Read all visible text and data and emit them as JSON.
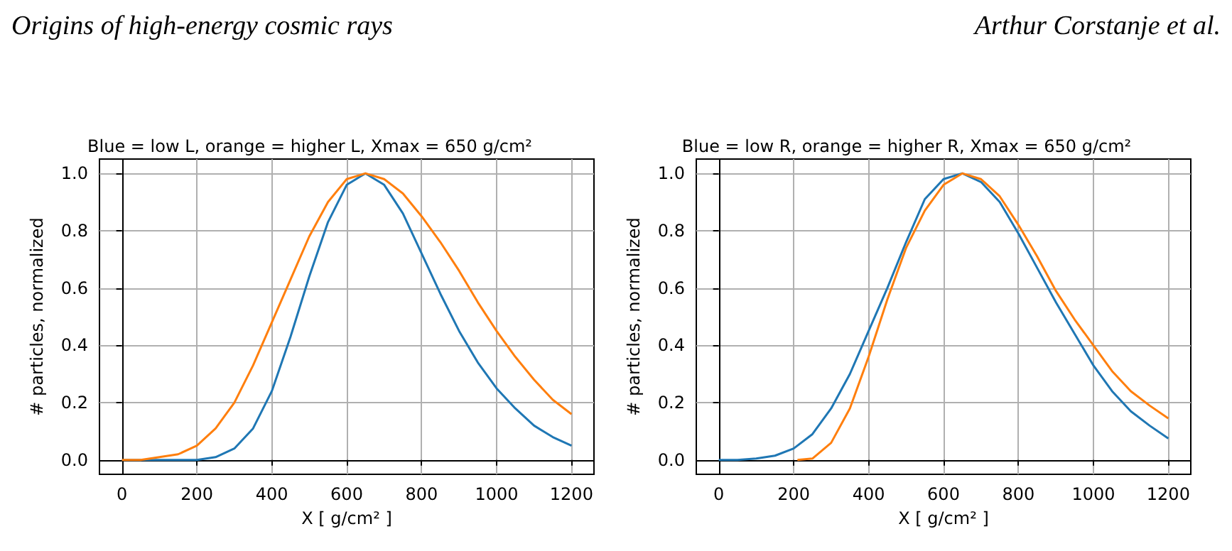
{
  "chart_data": [
    {
      "type": "line",
      "title": "Blue = low L, orange = higher L, Xmax = 650 g/cm²",
      "xlabel": "X [ g/cm² ]",
      "ylabel": "# particles, normalized",
      "annotations": [
        "Origins of high-energy cosmic rays",
        "Arthur Corstanje et al."
      ],
      "xlim": [
        -60,
        1260
      ],
      "xticks": [
        0,
        200,
        400,
        600,
        800,
        1000,
        1200
      ],
      "ylim": [
        -0.05,
        1.05
      ],
      "yticks": [
        {
          "value": 0,
          "label": "0.0"
        },
        {
          "value": 0.2,
          "label": "0.2"
        },
        {
          "value": 0.4,
          "label": "0.4"
        },
        {
          "value": 0.6,
          "label": "0.6"
        },
        {
          "value": 0.8,
          "label": "0.8"
        },
        {
          "value": 1,
          "label": "1.0"
        }
      ],
      "grid": true,
      "marker": "none",
      "line_style": "solid",
      "series": [
        {
          "color": "#1f77b4",
          "x": [
            0,
            50,
            100,
            150,
            200,
            250,
            300,
            350,
            400,
            450,
            500,
            550,
            600,
            650,
            700,
            750,
            800,
            850,
            900,
            950,
            1000,
            1050,
            1100,
            1150,
            1200
          ],
          "values": [
            0,
            0,
            0,
            0,
            0,
            0.01,
            0.04,
            0.11,
            0.24,
            0.43,
            0.64,
            0.83,
            0.96,
            1.0,
            0.96,
            0.86,
            0.72,
            0.58,
            0.45,
            0.34,
            0.25,
            0.18,
            0.12,
            0.08,
            0.05
          ]
        },
        {
          "color": "#ff7f0e",
          "x": [
            0,
            50,
            100,
            150,
            200,
            250,
            300,
            350,
            400,
            450,
            500,
            550,
            600,
            650,
            700,
            750,
            800,
            850,
            900,
            950,
            1000,
            1050,
            1100,
            1150,
            1200
          ],
          "values": [
            0,
            0,
            0.01,
            0.02,
            0.05,
            0.11,
            0.2,
            0.33,
            0.48,
            0.63,
            0.78,
            0.9,
            0.98,
            1.0,
            0.98,
            0.93,
            0.85,
            0.76,
            0.66,
            0.55,
            0.45,
            0.36,
            0.28,
            0.21,
            0.16
          ]
        }
      ]
    },
    {
      "type": "line",
      "title": "Blue = low R, orange = higher R, Xmax = 650 g/cm²",
      "xlabel": "X [ g/cm² ]",
      "ylabel": "# particles, normalized",
      "xlim": [
        -60,
        1260
      ],
      "xticks": [
        0,
        200,
        400,
        600,
        800,
        1000,
        1200
      ],
      "ylim": [
        -0.05,
        1.05
      ],
      "yticks": [
        {
          "value": 0,
          "label": "0.0"
        },
        {
          "value": 0.2,
          "label": "0.2"
        },
        {
          "value": 0.4,
          "label": "0.4"
        },
        {
          "value": 0.6,
          "label": "0.6"
        },
        {
          "value": 0.8,
          "label": "0.8"
        },
        {
          "value": 1,
          "label": "1.0"
        }
      ],
      "grid": true,
      "marker": "none",
      "line_style": "solid",
      "series": [
        {
          "color": "#1f77b4",
          "x": [
            0,
            50,
            100,
            150,
            200,
            250,
            300,
            350,
            400,
            450,
            500,
            550,
            600,
            650,
            700,
            750,
            800,
            850,
            900,
            950,
            1000,
            1050,
            1100,
            1150,
            1200
          ],
          "values": [
            0,
            0,
            0.005,
            0.015,
            0.04,
            0.09,
            0.18,
            0.3,
            0.45,
            0.6,
            0.76,
            0.91,
            0.98,
            1.0,
            0.97,
            0.9,
            0.79,
            0.67,
            0.55,
            0.44,
            0.33,
            0.24,
            0.17,
            0.12,
            0.075
          ]
        },
        {
          "color": "#ff7f0e",
          "x": [
            210,
            250,
            300,
            350,
            400,
            450,
            500,
            550,
            600,
            650,
            700,
            750,
            800,
            850,
            900,
            950,
            1000,
            1050,
            1100,
            1150,
            1200
          ],
          "values": [
            0,
            0.005,
            0.06,
            0.18,
            0.36,
            0.56,
            0.74,
            0.87,
            0.96,
            1.0,
            0.98,
            0.92,
            0.82,
            0.71,
            0.59,
            0.49,
            0.4,
            0.31,
            0.24,
            0.19,
            0.145
          ]
        }
      ]
    }
  ]
}
